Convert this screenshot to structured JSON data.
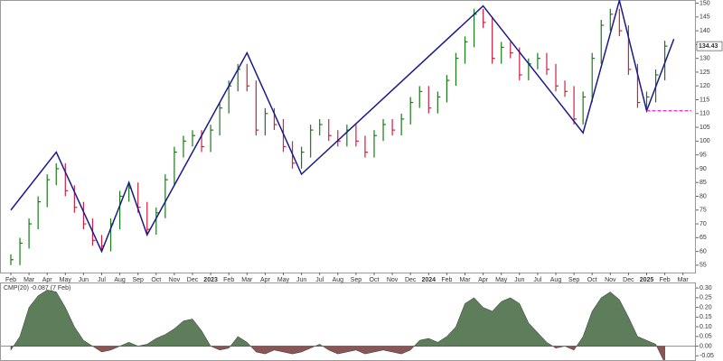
{
  "chart_data": [
    {
      "type": "ohlc",
      "categories": [
        "Feb",
        null,
        "Mar",
        null,
        "Apr",
        null,
        "May",
        null,
        "Jun",
        null,
        "Jul",
        null,
        "Aug",
        null,
        "Sep",
        null,
        "Oct",
        null,
        "Nov",
        null,
        "Dec",
        null,
        "2023",
        null,
        "Feb",
        null,
        "Mar",
        null,
        "Apr",
        null,
        "May",
        null,
        "Jun",
        null,
        "Jul",
        null,
        "Aug",
        null,
        "Sep",
        null,
        "Oct",
        null,
        "Nov",
        null,
        "Dec",
        null,
        "2024",
        null,
        "Feb",
        null,
        "Mar",
        null,
        "Apr",
        null,
        "May",
        null,
        "Jun",
        null,
        "Jul",
        null,
        "Aug",
        null,
        "Sep",
        null,
        "Oct",
        null,
        "Nov",
        null,
        "Dec",
        null,
        "2025",
        null,
        "Feb",
        null,
        "Mar"
      ],
      "series": [
        {
          "colors": {
            "up": "#1a7a1a",
            "down": "#cc2244"
          },
          "values": [
            57,
            63,
            70,
            78,
            86,
            90,
            82,
            76,
            70,
            64,
            62,
            70,
            80,
            83,
            76,
            68,
            74,
            86,
            96,
            100,
            102,
            98,
            104,
            112,
            120,
            126,
            120,
            104,
            110,
            106,
            98,
            92,
            96,
            104,
            106,
            102,
            100,
            104,
            100,
            96,
            102,
            106,
            104,
            108,
            114,
            118,
            112,
            116,
            122,
            130,
            136,
            146,
            143,
            130,
            134,
            132,
            124,
            128,
            130,
            126,
            120,
            118,
            108,
            116,
            130,
            142,
            146,
            140,
            126,
            114,
            116,
            124,
            134.43,
            null,
            null
          ]
        }
      ],
      "zigzag": {
        "color": "#1a1a8c",
        "x": [
          0,
          5,
          10,
          13,
          15,
          26,
          32,
          52,
          63,
          67,
          70,
          73
        ],
        "values": [
          75,
          96,
          60,
          85,
          66,
          132,
          88,
          149,
          103,
          151,
          111,
          137
        ]
      },
      "support": {
        "value": 111,
        "color": "#dd22dd"
      },
      "ylim": [
        53,
        150.5
      ],
      "yticks": [
        55,
        60,
        65,
        70,
        75,
        80,
        85,
        90,
        95,
        100,
        105,
        110,
        115,
        120,
        125,
        130,
        135,
        140,
        145,
        150
      ]
    },
    {
      "type": "area",
      "title": "CMP(20) -0.087 (7 Feb)",
      "colors": {
        "positive": "#5e7d5a",
        "negative": "#8a5555"
      },
      "values": [
        -0.02,
        0.05,
        0.2,
        0.26,
        0.29,
        0.28,
        0.2,
        0.1,
        0.03,
        0.0,
        -0.03,
        -0.02,
        0.0,
        0.02,
        0.0,
        0.01,
        0.04,
        0.06,
        0.09,
        0.13,
        0.14,
        0.08,
        0.0,
        -0.02,
        -0.01,
        0.05,
        0.02,
        -0.03,
        -0.04,
        -0.02,
        -0.03,
        -0.04,
        -0.03,
        -0.01,
        0.01,
        -0.02,
        -0.04,
        -0.03,
        -0.02,
        -0.04,
        -0.03,
        -0.02,
        -0.03,
        -0.04,
        -0.02,
        0.03,
        0.04,
        0.02,
        0.05,
        0.1,
        0.22,
        0.25,
        0.2,
        0.18,
        0.23,
        0.25,
        0.22,
        0.12,
        0.07,
        0.02,
        -0.01,
        0.0,
        -0.02,
        0.05,
        0.18,
        0.25,
        0.28,
        0.24,
        0.15,
        0.05,
        0.03,
        0.01,
        -0.087,
        null,
        null
      ],
      "ylim": [
        -0.058,
        0.31
      ],
      "yticks": [
        -0.05,
        {
          "value": 0,
          "label": "0.00"
        },
        0.05,
        {
          "value": 0.1,
          "label": "0.10"
        },
        0.15,
        {
          "value": 0.2,
          "label": "0.20"
        },
        0.25,
        {
          "value": 0.3,
          "label": "0.30"
        }
      ]
    }
  ]
}
